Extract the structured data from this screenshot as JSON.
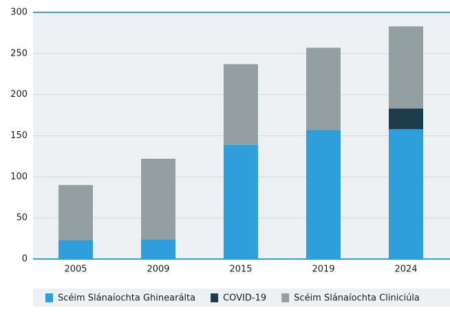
{
  "chart_data": {
    "type": "stacked_bar",
    "categories": [
      "2005",
      "2009",
      "2015",
      "2019",
      "2024"
    ],
    "series": [
      {
        "name": "Scéim Slánaíochta Ghinearálta",
        "color": "#2e9fdb",
        "values": [
          23,
          24,
          139,
          157,
          158
        ]
      },
      {
        "name": "COVID-19",
        "color": "#1d3d4c",
        "values": [
          null,
          null,
          null,
          null,
          25
        ]
      },
      {
        "name": "Scéim Slánaíochta Cliniciúla",
        "color": "#939fa1",
        "values": [
          67,
          98,
          98,
          100,
          100
        ]
      }
    ],
    "ylim": [
      0,
      300
    ],
    "yticks": [
      0,
      50,
      100,
      150,
      200,
      250,
      300
    ],
    "grid": true,
    "legend": "bottom"
  }
}
